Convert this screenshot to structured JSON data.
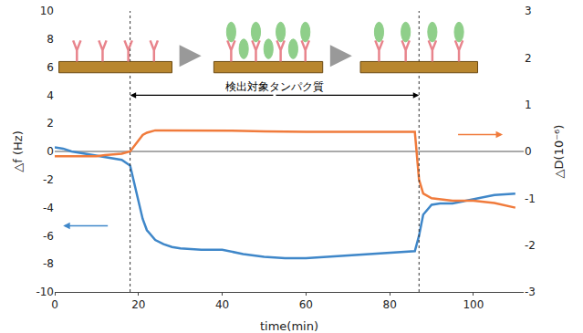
{
  "chart_data": {
    "type": "line",
    "x_label": "time(min)",
    "y_label": "△f (Hz)",
    "y2_label": "△D(10⁻⁶)",
    "x": [
      0,
      2,
      4,
      6,
      8,
      10,
      12,
      14,
      16,
      18,
      19,
      20,
      21,
      22,
      24,
      26,
      28,
      30,
      35,
      40,
      45,
      50,
      55,
      60,
      65,
      70,
      75,
      80,
      84,
      86,
      87,
      88,
      90,
      92,
      95,
      100,
      105,
      110
    ],
    "series": [
      {
        "name": "△f",
        "color": "#3f87c9",
        "axis": "y",
        "values": [
          0.3,
          0.2,
          0.0,
          -0.1,
          -0.2,
          -0.3,
          -0.4,
          -0.5,
          -0.6,
          -1.0,
          -2.3,
          -3.6,
          -4.8,
          -5.6,
          -6.3,
          -6.6,
          -6.8,
          -6.9,
          -7.0,
          -7.0,
          -7.3,
          -7.5,
          -7.6,
          -7.6,
          -7.5,
          -7.4,
          -7.3,
          -7.2,
          -7.1,
          -7.1,
          -6.0,
          -4.5,
          -3.8,
          -3.7,
          -3.7,
          -3.4,
          -3.1,
          -3.0
        ]
      },
      {
        "name": "△D",
        "color": "#f07b3c",
        "axis": "y2",
        "values": [
          -0.1,
          -0.1,
          -0.1,
          -0.1,
          -0.1,
          -0.1,
          -0.08,
          -0.07,
          -0.05,
          0.0,
          0.12,
          0.25,
          0.35,
          0.4,
          0.45,
          0.45,
          0.45,
          0.45,
          0.45,
          0.45,
          0.44,
          0.43,
          0.42,
          0.42,
          0.42,
          0.42,
          0.42,
          0.42,
          0.42,
          0.42,
          -0.6,
          -0.9,
          -1.0,
          -1.02,
          -1.05,
          -1.05,
          -1.1,
          -1.2
        ]
      }
    ],
    "events": [
      18,
      87
    ],
    "annotations": [
      {
        "text": "検出対象タンパク質",
        "x": [
          18,
          87
        ],
        "y": 4
      }
    ],
    "xlim": [
      0,
      112
    ],
    "xticks": [
      0,
      20,
      40,
      60,
      80,
      100
    ],
    "ylim": [
      -10,
      10
    ],
    "yticks": [
      -10,
      -8,
      -6,
      -4,
      -2,
      0,
      2,
      4,
      6,
      8,
      10
    ],
    "y2lim": [
      -3,
      3
    ],
    "y2ticks": [
      -3,
      -2,
      -1,
      0,
      1,
      2,
      3
    ],
    "grid": false
  }
}
